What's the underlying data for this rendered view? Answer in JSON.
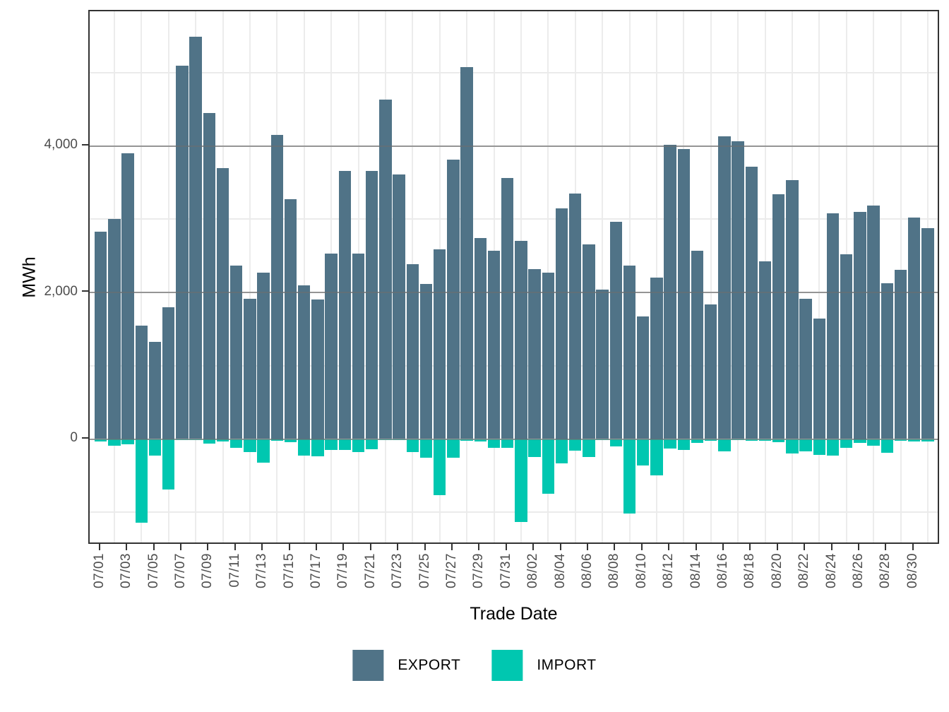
{
  "chart_data": {
    "type": "bar",
    "title": "",
    "xlabel": "Trade Date",
    "ylabel": "MWh",
    "grid": true,
    "legend_position": "bottom",
    "ylim": [
      -1450,
      5840
    ],
    "y_axis": {
      "major_ticks": [
        0,
        2000,
        4000
      ],
      "major_tick_labels": [
        "0",
        "2,000",
        "4,000"
      ],
      "minor_gridlines": [
        -1000,
        1000,
        3000,
        5000
      ]
    },
    "x_tick_labels": [
      "07/01",
      "07/03",
      "07/05",
      "07/07",
      "07/09",
      "07/11",
      "07/13",
      "07/15",
      "07/17",
      "07/19",
      "07/21",
      "07/23",
      "07/25",
      "07/27",
      "07/29",
      "07/31",
      "08/02",
      "08/04",
      "08/06",
      "08/08",
      "08/10",
      "08/12",
      "08/14",
      "08/16",
      "08/18",
      "08/20",
      "08/22",
      "08/24",
      "08/26",
      "08/28",
      "08/30"
    ],
    "categories": [
      "07/01",
      "07/02",
      "07/03",
      "07/04",
      "07/05",
      "07/06",
      "07/07",
      "07/08",
      "07/09",
      "07/10",
      "07/11",
      "07/12",
      "07/13",
      "07/14",
      "07/15",
      "07/16",
      "07/17",
      "07/18",
      "07/19",
      "07/20",
      "07/21",
      "07/22",
      "07/23",
      "07/24",
      "07/25",
      "07/26",
      "07/27",
      "07/28",
      "07/29",
      "07/30",
      "07/31",
      "08/01",
      "08/02",
      "08/03",
      "08/04",
      "08/05",
      "08/06",
      "08/07",
      "08/08",
      "08/09",
      "08/10",
      "08/11",
      "08/12",
      "08/13",
      "08/14",
      "08/15",
      "08/16",
      "08/17",
      "08/18",
      "08/19",
      "08/20",
      "08/21",
      "08/22",
      "08/23",
      "08/24",
      "08/25",
      "08/26",
      "08/27",
      "08/28",
      "08/29",
      "08/30",
      "08/31"
    ],
    "series": [
      {
        "name": "EXPORT",
        "color": "#507387",
        "values": [
          2830,
          3000,
          3900,
          1550,
          1330,
          1800,
          5090,
          5490,
          4450,
          3700,
          2370,
          1910,
          2270,
          4150,
          3270,
          2100,
          1900,
          2530,
          3660,
          2530,
          3660,
          4630,
          3610,
          2390,
          2120,
          2590,
          3810,
          5070,
          2740,
          2570,
          3560,
          2700,
          2320,
          2270,
          3150,
          3350,
          2660,
          2040,
          2960,
          2370,
          1670,
          2200,
          4010,
          3960,
          2570,
          1840,
          4130,
          4060,
          3720,
          2420,
          3340,
          3530,
          1910,
          1640,
          3080,
          2520,
          3100,
          3190,
          2130,
          2310,
          3020,
          2880
        ]
      },
      {
        "name": "IMPORT",
        "color": "#00c7b0",
        "values": [
          -30,
          -90,
          -70,
          -1140,
          -230,
          -690,
          -10,
          -10,
          -60,
          -35,
          -120,
          -180,
          -320,
          -20,
          -40,
          -225,
          -235,
          -145,
          -145,
          -180,
          -140,
          -10,
          -10,
          -180,
          -260,
          -770,
          -260,
          -20,
          -30,
          -120,
          -120,
          -1130,
          -250,
          -750,
          -330,
          -160,
          -250,
          -10,
          -100,
          -1020,
          -360,
          -500,
          -130,
          -150,
          -50,
          -20,
          -170,
          -10,
          -20,
          -20,
          -40,
          -200,
          -170,
          -215,
          -230,
          -120,
          -55,
          -90,
          -190,
          -25,
          -35,
          -30
        ]
      }
    ],
    "legend": [
      "EXPORT",
      "IMPORT"
    ]
  }
}
